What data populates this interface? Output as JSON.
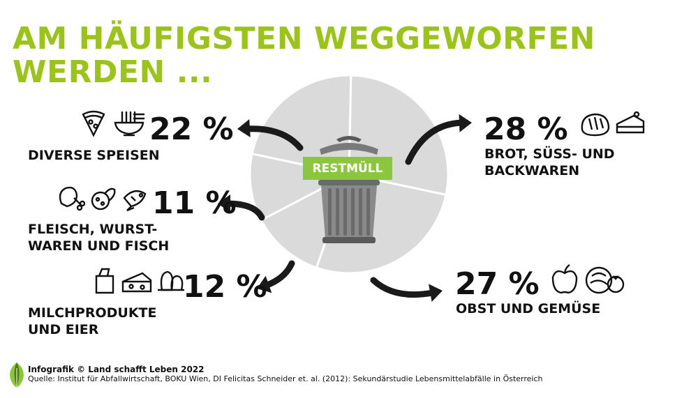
{
  "title": {
    "line1": "AM HÄUFIGSTEN WEGGEWORFEN",
    "line2": "WERDEN ..."
  },
  "bin_label": "RESTMÜLL",
  "categories": [
    {
      "pct": "22 %",
      "label_lines": [
        "DIVERSE SPEISEN"
      ],
      "icons": [
        "pizza-icon",
        "noodle-bowl-icon"
      ]
    },
    {
      "pct": "11 %",
      "label_lines": [
        "FLEISCH, WURST-",
        "WAREN UND FISCH"
      ],
      "icons": [
        "chicken-leg-icon",
        "sausage-icon",
        "fish-icon"
      ]
    },
    {
      "pct": "12 %",
      "label_lines": [
        "MILCHPRODUKTE",
        "UND EIER"
      ],
      "icons": [
        "milk-bottle-icon",
        "cheese-icon",
        "egg-icon"
      ]
    },
    {
      "pct": "28 %",
      "label_lines": [
        "BROT, SÜSS- UND",
        "BACKWAREN"
      ],
      "icons": [
        "bread-icon",
        "cake-icon"
      ]
    },
    {
      "pct": "27 %",
      "label_lines": [
        "OBST UND GEMÜSE"
      ],
      "icons": [
        "apple-icon",
        "vegetables-icon"
      ]
    }
  ],
  "chart_data": {
    "type": "pie",
    "categories": [
      "Brot, Süß- und Backwaren",
      "Obst und Gemüse",
      "Milchprodukte und Eier",
      "Fleisch, Wurstwaren und Fisch",
      "Diverse Speisen"
    ],
    "values": [
      28,
      27,
      12,
      11,
      22
    ],
    "unit": "%",
    "colors": {
      "slice": "#dadada",
      "separator": "#ffffff",
      "accent": "#9bc31c",
      "arrow": "#1a1a1a"
    }
  },
  "footer": {
    "line1": "Infografik © Land schafft Leben 2022",
    "line2": "Quelle: Institut für Abfallwirtschaft, BOKU Wien, DI Felicitas Schneider et. al. (2012): Sekundärstudie Lebensmittelabfälle in Österreich"
  }
}
